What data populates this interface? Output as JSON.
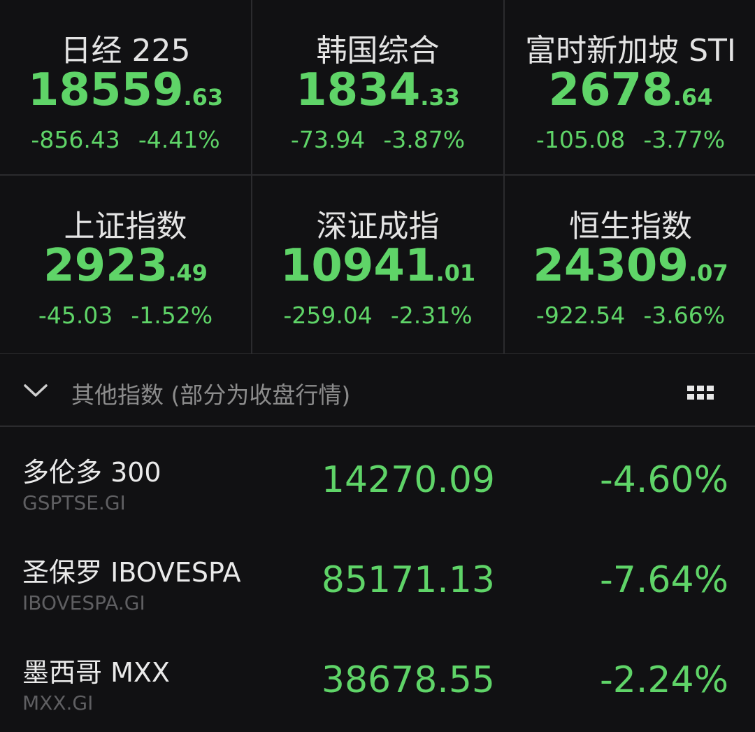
{
  "tiles": [
    {
      "name": "日经 225",
      "price_int": "18559",
      "price_dec": ".63",
      "change": "-856.43",
      "percent": "-4.41%"
    },
    {
      "name": "韩国综合",
      "price_int": "1834",
      "price_dec": ".33",
      "change": "-73.94",
      "percent": "-3.87%"
    },
    {
      "name": "富时新加坡 STI",
      "price_int": "2678",
      "price_dec": ".64",
      "change": "-105.08",
      "percent": "-3.77%"
    },
    {
      "name": "上证指数",
      "price_int": "2923",
      "price_dec": ".49",
      "change": "-45.03",
      "percent": "-1.52%"
    },
    {
      "name": "深证成指",
      "price_int": "10941",
      "price_dec": ".01",
      "change": "-259.04",
      "percent": "-2.31%"
    },
    {
      "name": "恒生指数",
      "price_int": "24309",
      "price_dec": ".07",
      "change": "-922.54",
      "percent": "-3.66%"
    }
  ],
  "section": {
    "title": "其他指数 (部分为收盘行情)"
  },
  "list": [
    {
      "name": "多伦多 300",
      "code": "GSPTSE.GI",
      "price": "14270.09",
      "percent": "-4.60%"
    },
    {
      "name": "圣保罗 IBOVESPA",
      "code": "IBOVESPA.GI",
      "price": "85171.13",
      "percent": "-7.64%"
    },
    {
      "name": "墨西哥 MXX",
      "code": "MXX.GI",
      "price": "38678.55",
      "percent": "-2.24%"
    }
  ]
}
